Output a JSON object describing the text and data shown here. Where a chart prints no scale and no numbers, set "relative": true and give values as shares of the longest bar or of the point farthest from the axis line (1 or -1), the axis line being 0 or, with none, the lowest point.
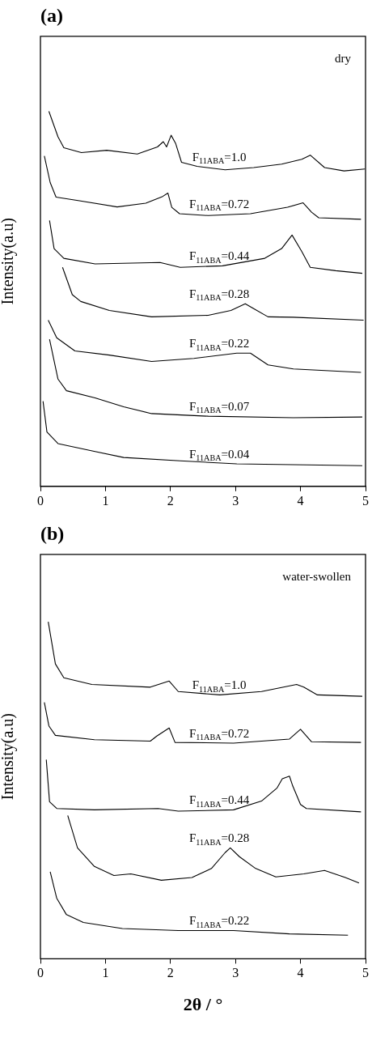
{
  "chart_data": [
    {
      "type": "line",
      "title": "(a)",
      "ylabel": "Intensity(a.u)",
      "relative": true,
      "xlim": [
        0,
        5
      ],
      "xticks": [
        0,
        1,
        2,
        3,
        4,
        5
      ],
      "grid": false,
      "legend": false,
      "marker": "none",
      "annotations": [
        "dry"
      ],
      "series": [
        {
          "name": "F$_{11ABA}$=1.0",
          "color": "#000000",
          "x": [
            0.13,
            0.27,
            0.36,
            0.63,
            1.02,
            1.49,
            1.8,
            1.89,
            1.94,
            2.01,
            2.08,
            2.17,
            2.41,
            2.84,
            3.28,
            3.71,
            4.02,
            4.15,
            4.37,
            4.67,
            4.99
          ],
          "values": [
            1.0,
            0.932,
            0.903,
            0.89,
            0.896,
            0.886,
            0.905,
            0.919,
            0.905,
            0.936,
            0.914,
            0.864,
            0.853,
            0.844,
            0.85,
            0.859,
            0.872,
            0.883,
            0.85,
            0.841,
            0.846
          ]
        },
        {
          "name": "F$_{11ABA}$=0.72",
          "color": "#000000",
          "x": [
            0.06,
            0.15,
            0.24,
            0.58,
            1.18,
            1.62,
            1.88,
            1.96,
            2.02,
            2.14,
            2.58,
            3.23,
            3.8,
            4.04,
            4.17,
            4.28,
            4.93
          ],
          "values": [
            0.881,
            0.81,
            0.771,
            0.762,
            0.745,
            0.755,
            0.773,
            0.782,
            0.744,
            0.727,
            0.722,
            0.727,
            0.744,
            0.756,
            0.731,
            0.716,
            0.712
          ]
        },
        {
          "name": "F$_{11ABA}$=0.44",
          "color": "#000000",
          "x": [
            0.14,
            0.21,
            0.36,
            0.84,
            1.84,
            2.15,
            2.8,
            3.45,
            3.71,
            3.87,
            4.02,
            4.15,
            4.54,
            4.95
          ],
          "values": [
            0.709,
            0.634,
            0.608,
            0.593,
            0.597,
            0.584,
            0.588,
            0.608,
            0.634,
            0.67,
            0.626,
            0.584,
            0.575,
            0.568
          ]
        },
        {
          "name": "F$_{11ABA}$=0.28",
          "color": "#000000",
          "x": [
            0.34,
            0.49,
            0.62,
            1.06,
            1.71,
            2.58,
            2.93,
            3.15,
            3.28,
            3.5,
            3.89,
            4.97
          ],
          "values": [
            0.584,
            0.511,
            0.493,
            0.469,
            0.452,
            0.456,
            0.469,
            0.487,
            0.474,
            0.452,
            0.451,
            0.443
          ]
        },
        {
          "name": "F$_{11ABA}$=0.22",
          "color": "#000000",
          "x": [
            0.12,
            0.25,
            0.53,
            1.06,
            1.71,
            2.36,
            3.02,
            3.23,
            3.5,
            3.89,
            4.93
          ],
          "values": [
            0.443,
            0.396,
            0.361,
            0.35,
            0.333,
            0.341,
            0.355,
            0.355,
            0.324,
            0.313,
            0.304
          ]
        },
        {
          "name": "F$_{11ABA}$=0.07",
          "color": "#000000",
          "x": [
            0.14,
            0.27,
            0.4,
            0.84,
            1.28,
            1.71,
            2.58,
            3.89,
            4.95
          ],
          "values": [
            0.392,
            0.286,
            0.255,
            0.236,
            0.212,
            0.194,
            0.187,
            0.183,
            0.185
          ]
        },
        {
          "name": "F$_{11ABA}$=0.04",
          "color": "#000000",
          "x": [
            0.04,
            0.1,
            0.27,
            0.84,
            1.28,
            2.15,
            3.02,
            4.95
          ],
          "values": [
            0.227,
            0.145,
            0.114,
            0.093,
            0.077,
            0.068,
            0.06,
            0.055
          ]
        }
      ]
    },
    {
      "type": "line",
      "title": "(b)",
      "ylabel": "Intensity(a.u)",
      "xlabel": "2θ / °",
      "relative": true,
      "xlim": [
        0,
        5
      ],
      "xticks": [
        0,
        1,
        2,
        3,
        4,
        5
      ],
      "grid": false,
      "legend": false,
      "marker": "none",
      "annotations": [
        "water-swollen"
      ],
      "series": [
        {
          "name": "F$_{11ABA}$=1.0",
          "color": "#000000",
          "x": [
            0.12,
            0.23,
            0.36,
            0.79,
            1.69,
            1.98,
            2.12,
            2.76,
            3.4,
            3.94,
            4.05,
            4.26,
            4.95
          ],
          "values": [
            1.0,
            0.875,
            0.834,
            0.814,
            0.806,
            0.824,
            0.793,
            0.783,
            0.793,
            0.814,
            0.806,
            0.783,
            0.779
          ]
        },
        {
          "name": "F$_{11ABA}$=0.72",
          "color": "#000000",
          "x": [
            0.06,
            0.13,
            0.23,
            0.83,
            1.69,
            1.79,
            1.98,
            2.07,
            2.97,
            3.83,
            4.0,
            4.17,
            4.93
          ],
          "values": [
            0.761,
            0.691,
            0.663,
            0.65,
            0.646,
            0.661,
            0.685,
            0.642,
            0.64,
            0.652,
            0.681,
            0.644,
            0.642
          ]
        },
        {
          "name": "F$_{11ABA}$=0.44",
          "color": "#000000",
          "x": [
            0.09,
            0.14,
            0.25,
            0.83,
            1.81,
            2.12,
            2.97,
            3.4,
            3.64,
            3.72,
            3.83,
            3.88,
            4.0,
            4.09,
            4.93
          ],
          "values": [
            0.591,
            0.466,
            0.446,
            0.442,
            0.446,
            0.438,
            0.442,
            0.468,
            0.507,
            0.534,
            0.542,
            0.513,
            0.458,
            0.446,
            0.436
          ]
        },
        {
          "name": "F$_{11ABA}$=0.28",
          "color": "#000000",
          "x": [
            0.42,
            0.57,
            0.83,
            1.13,
            1.39,
            1.86,
            2.33,
            2.63,
            2.84,
            2.92,
            3.06,
            3.31,
            3.62,
            4.05,
            4.37,
            4.69,
            4.9
          ],
          "values": [
            0.425,
            0.329,
            0.274,
            0.247,
            0.252,
            0.233,
            0.241,
            0.268,
            0.315,
            0.329,
            0.303,
            0.268,
            0.243,
            0.252,
            0.262,
            0.241,
            0.225
          ]
        },
        {
          "name": "F$_{11ABA}$=0.22",
          "color": "#000000",
          "x": [
            0.15,
            0.25,
            0.4,
            0.66,
            1.26,
            2.12,
            2.97,
            3.83,
            4.73
          ],
          "values": [
            0.258,
            0.18,
            0.131,
            0.108,
            0.09,
            0.084,
            0.084,
            0.074,
            0.07
          ]
        }
      ]
    }
  ]
}
